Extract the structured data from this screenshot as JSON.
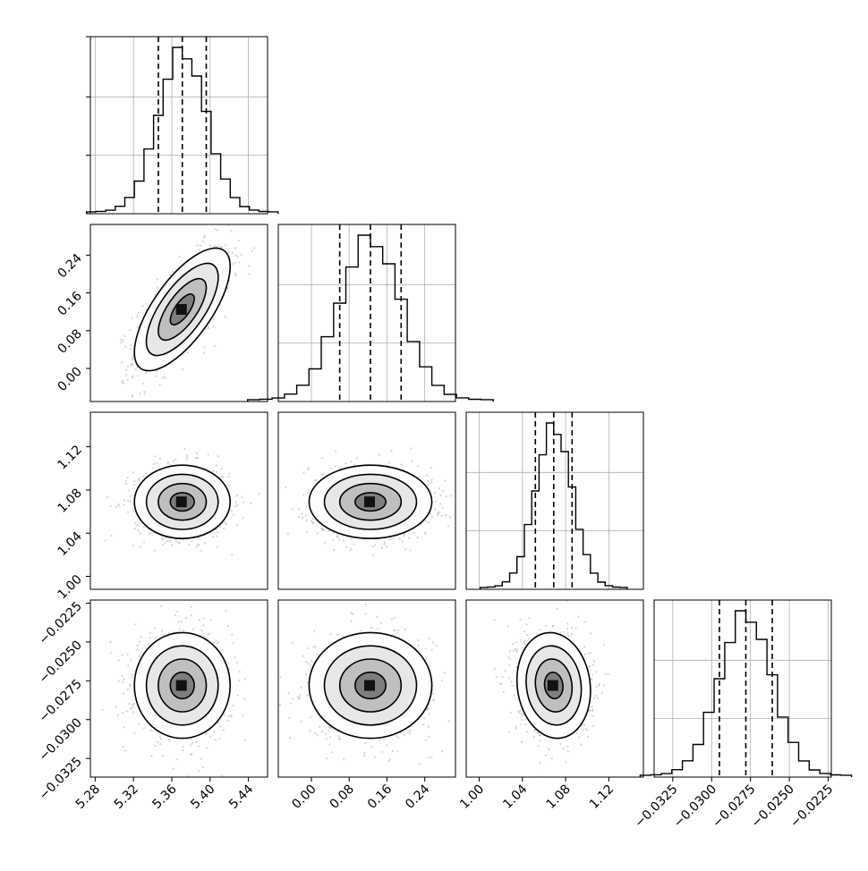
{
  "chart_data": {
    "type": "corner",
    "title": "",
    "parameters": [
      {
        "range": [
          5.275,
          5.46
        ],
        "ticks": [
          "5.28",
          "5.32",
          "5.36",
          "5.40",
          "5.44"
        ],
        "tick_values": [
          5.28,
          5.32,
          5.36,
          5.4,
          5.44
        ],
        "quantiles": [
          5.346,
          5.371,
          5.396
        ],
        "mean": 5.371,
        "sd": 0.025
      },
      {
        "range": [
          -0.07,
          0.305
        ],
        "ticks": [
          "0.00",
          "0.08",
          "0.16",
          "0.24"
        ],
        "tick_values": [
          0.0,
          0.08,
          0.16,
          0.24
        ],
        "quantiles": [
          0.06,
          0.125,
          0.19
        ],
        "mean": 0.125,
        "sd": 0.065
      },
      {
        "range": [
          0.988,
          1.152
        ],
        "ticks": [
          "1.00",
          "1.04",
          "1.08",
          "1.12"
        ],
        "tick_values": [
          1.0,
          1.04,
          1.08,
          1.12
        ],
        "quantiles": [
          1.052,
          1.069,
          1.086
        ],
        "mean": 1.069,
        "sd": 0.017
      },
      {
        "range": [
          -0.0337,
          -0.0223
        ],
        "ticks": [
          "−0.0325",
          "−0.0300",
          "−0.0275",
          "−0.0250",
          "−0.0225"
        ],
        "tick_values": [
          -0.0325,
          -0.03,
          -0.0275,
          -0.025,
          -0.0225
        ],
        "quantiles": [
          -0.0295,
          -0.0278,
          -0.0261
        ],
        "mean": -0.0278,
        "sd": 0.0017
      }
    ],
    "correlations": [
      {
        "i": 1,
        "j": 0,
        "rho": 0.7
      },
      {
        "i": 2,
        "j": 0,
        "rho": 0.0
      },
      {
        "i": 2,
        "j": 1,
        "rho": 0.0
      },
      {
        "i": 3,
        "j": 0,
        "rho": 0.0
      },
      {
        "i": 3,
        "j": 1,
        "rho": 0.0
      },
      {
        "i": 3,
        "j": 2,
        "rho": -0.1
      }
    ],
    "histogram_bins": 20,
    "contour_levels_sigma": [
      0.5,
      1.0,
      1.5,
      2.0
    ],
    "grid": true,
    "colors": {
      "contour": "#000000",
      "hist": "#000000",
      "scatter": "#888888",
      "grid": "#b0b0b0",
      "frame": "#000000"
    }
  }
}
